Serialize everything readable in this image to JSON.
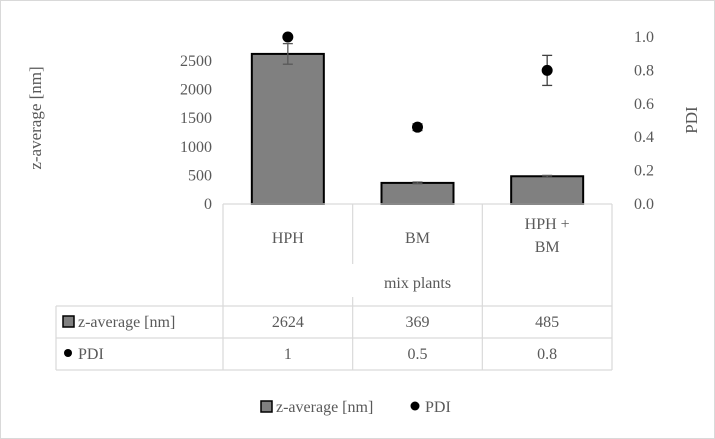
{
  "chart_data": {
    "type": "bar",
    "group_label": "mix plants",
    "categories": [
      "HPH",
      "BM",
      "HPH + BM"
    ],
    "category_lines": [
      [
        "HPH"
      ],
      [
        "BM"
      ],
      [
        "HPH +",
        "BM"
      ]
    ],
    "series": [
      {
        "name": "z-average [nm]",
        "type": "bar",
        "axis": "left",
        "values": [
          2624,
          369,
          485
        ],
        "error": [
          180,
          15,
          15
        ],
        "table_values": [
          "2624",
          "369",
          "485"
        ],
        "color": "#808080"
      },
      {
        "name": "PDI",
        "type": "scatter",
        "axis": "right",
        "values": [
          1.0,
          0.46,
          0.8
        ],
        "error": [
          0,
          0.02,
          0.09
        ],
        "table_values": [
          "1",
          "0.5",
          "0.8"
        ],
        "color": "#000000"
      }
    ],
    "ylabel_left": "z-average [nm]",
    "ylabel_right": "PDI",
    "ylim_left": [
      0,
      2900
    ],
    "yticks_left": [
      "0",
      "500",
      "1000",
      "1500",
      "2000",
      "2500"
    ],
    "yticks_left_values": [
      0,
      500,
      1000,
      1500,
      2000,
      2500
    ],
    "ylim_right": [
      0,
      1.0
    ],
    "yticks_right": [
      "0.0",
      "0.2",
      "0.4",
      "0.6",
      "0.8",
      "1.0"
    ],
    "yticks_right_values": [
      0,
      0.2,
      0.4,
      0.6,
      0.8,
      1.0
    ],
    "grid": false,
    "legend_position": "bottom",
    "data_table": true
  }
}
